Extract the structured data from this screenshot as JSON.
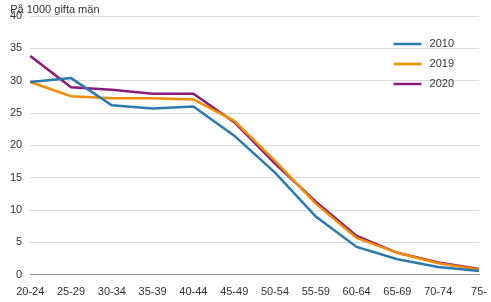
{
  "chart_data": {
    "type": "line",
    "y_label": "På 1000 gifta män",
    "categories": [
      "20-24",
      "25-29",
      "30-34",
      "35-39",
      "40-44",
      "45-49",
      "50-54",
      "55-59",
      "60-64",
      "65-69",
      "70-74",
      "75-"
    ],
    "series": [
      {
        "name": "2010",
        "color": "#2a7ab0",
        "values": [
          29.8,
          30.4,
          26.2,
          25.7,
          26.0,
          21.5,
          15.8,
          9.0,
          4.3,
          2.4,
          1.2,
          0.6
        ]
      },
      {
        "name": "2019",
        "color": "#f28c00",
        "values": [
          29.8,
          27.6,
          27.3,
          27.3,
          27.1,
          23.8,
          17.6,
          11.0,
          5.7,
          3.4,
          1.8,
          0.8
        ]
      },
      {
        "name": "2020",
        "color": "#8b1a7d",
        "values": [
          33.8,
          29.0,
          28.6,
          28.0,
          28.0,
          23.6,
          17.2,
          11.3,
          6.0,
          3.4,
          1.9,
          0.9
        ]
      }
    ],
    "ylim": [
      0,
      40
    ],
    "yticks": [
      0,
      5,
      10,
      15,
      20,
      25,
      30,
      35,
      40
    ],
    "grid": true,
    "legend": "upper right"
  }
}
